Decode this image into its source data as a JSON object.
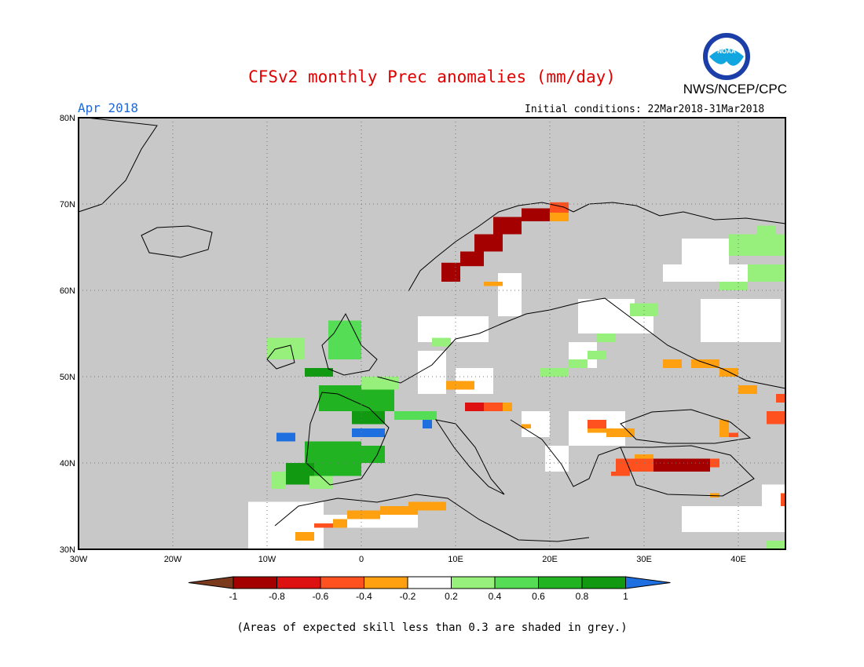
{
  "header": {
    "title": "CFSv2 monthly Prec anomalies (mm/day)",
    "org": "NWS/NCEP/CPC",
    "logo_text": "NOAA",
    "period": "Apr 2018",
    "initial_conditions": "Initial conditions: 22Mar2018-31Mar2018"
  },
  "map": {
    "region": "Europe",
    "lat_ticks": [
      "80N",
      "70N",
      "60N",
      "50N",
      "40N",
      "30N"
    ],
    "lon_ticks": [
      "30W",
      "20W",
      "10W",
      "0",
      "10E",
      "20E",
      "30E",
      "40E"
    ],
    "lon_range": [
      -30,
      45
    ],
    "lat_range": [
      30,
      80
    ],
    "grid": true,
    "skill_mask_color": "#c8c8c8",
    "land_color": "#ffffff"
  },
  "colorbar": {
    "ticks": [
      "-1",
      "-0.8",
      "-0.6",
      "-0.4",
      "-0.2",
      "0.2",
      "0.4",
      "0.6",
      "0.8",
      "1"
    ],
    "colors": [
      "#7b3a1c",
      "#a50000",
      "#dd1111",
      "#ff5020",
      "#ffa010",
      "#ffffff",
      "#97f07c",
      "#55dd55",
      "#22b322",
      "#129912",
      "#1e6fe0"
    ]
  },
  "footnote": "(Areas of expected skill less than 0.3 are shaded in grey.)",
  "anomaly_cells": [
    {
      "lon": 8.5,
      "lat": 63.2,
      "lon2": 10.5,
      "lat2": 61.0,
      "v": -0.9
    },
    {
      "lon": 10.5,
      "lat": 64.5,
      "lon2": 13.0,
      "lat2": 62.8,
      "v": -0.9
    },
    {
      "lon": 12.0,
      "lat": 66.5,
      "lon2": 15.0,
      "lat2": 64.5,
      "v": -0.9
    },
    {
      "lon": 14.0,
      "lat": 68.5,
      "lon2": 17.0,
      "lat2": 66.5,
      "v": -0.9
    },
    {
      "lon": 17.0,
      "lat": 69.5,
      "lon2": 20.0,
      "lat2": 68.0,
      "v": -0.9
    },
    {
      "lon": 20.0,
      "lat": 70.2,
      "lon2": 22.0,
      "lat2": 69.0,
      "v": -0.5
    },
    {
      "lon": 20.0,
      "lat": 69.0,
      "lon2": 22.0,
      "lat2": 68.0,
      "v": -0.3
    },
    {
      "lon": 13.0,
      "lat": 61.0,
      "lon2": 15.0,
      "lat2": 60.5,
      "v": -0.3
    },
    {
      "lon": -10.0,
      "lat": 54.5,
      "lon2": -6.0,
      "lat2": 52.0,
      "v": 0.3
    },
    {
      "lon": -3.5,
      "lat": 56.5,
      "lon2": 0.0,
      "lat2": 52.0,
      "v": 0.5
    },
    {
      "lon": -6.0,
      "lat": 51.0,
      "lon2": -3.0,
      "lat2": 50.0,
      "v": 0.9
    },
    {
      "lon": -4.5,
      "lat": 49.0,
      "lon2": 3.5,
      "lat2": 46.0,
      "v": 0.7
    },
    {
      "lon": 0.0,
      "lat": 50.0,
      "lon2": 4.0,
      "lat2": 48.5,
      "v": 0.3
    },
    {
      "lon": -1.0,
      "lat": 46.0,
      "lon2": 2.5,
      "lat2": 44.5,
      "v": 0.9
    },
    {
      "lon": 3.5,
      "lat": 46.0,
      "lon2": 8.0,
      "lat2": 45.0,
      "v": 0.5
    },
    {
      "lon": -9.0,
      "lat": 43.5,
      "lon2": -7.0,
      "lat2": 42.5,
      "v": 1.1
    },
    {
      "lon": -1.0,
      "lat": 44.0,
      "lon2": 2.5,
      "lat2": 43.0,
      "v": 1.1
    },
    {
      "lon": -6.0,
      "lat": 42.5,
      "lon2": 0.0,
      "lat2": 38.5,
      "v": 0.7
    },
    {
      "lon": 0.0,
      "lat": 42.0,
      "lon2": 2.5,
      "lat2": 40.0,
      "v": 0.7
    },
    {
      "lon": -8.0,
      "lat": 40.0,
      "lon2": -5.0,
      "lat2": 37.5,
      "v": 0.9
    },
    {
      "lon": -9.5,
      "lat": 39.0,
      "lon2": -8.0,
      "lat2": 37.0,
      "v": 0.3
    },
    {
      "lon": -5.5,
      "lat": 38.5,
      "lon2": -3.0,
      "lat2": 37.0,
      "v": 0.3
    },
    {
      "lon": 6.5,
      "lat": 45.0,
      "lon2": 7.5,
      "lat2": 44.0,
      "v": 1.1
    },
    {
      "lon": 7.5,
      "lat": 54.5,
      "lon2": 9.5,
      "lat2": 53.5,
      "v": 0.3
    },
    {
      "lon": 9.0,
      "lat": 49.5,
      "lon2": 12.0,
      "lat2": 48.5,
      "v": -0.3
    },
    {
      "lon": 11.0,
      "lat": 47.0,
      "lon2": 13.0,
      "lat2": 46.0,
      "v": -0.7
    },
    {
      "lon": 13.0,
      "lat": 47.0,
      "lon2": 15.0,
      "lat2": 46.0,
      "v": -0.5
    },
    {
      "lon": 15.0,
      "lat": 47.0,
      "lon2": 16.0,
      "lat2": 46.0,
      "v": -0.3
    },
    {
      "lon": 17.0,
      "lat": 44.5,
      "lon2": 18.0,
      "lat2": 44.0,
      "v": -0.3
    },
    {
      "lon": 19.0,
      "lat": 51.0,
      "lon2": 22.0,
      "lat2": 50.0,
      "v": 0.3
    },
    {
      "lon": 22.0,
      "lat": 52.0,
      "lon2": 24.0,
      "lat2": 51.0,
      "v": 0.3
    },
    {
      "lon": 24.0,
      "lat": 53.0,
      "lon2": 26.0,
      "lat2": 52.0,
      "v": 0.3
    },
    {
      "lon": 25.0,
      "lat": 55.0,
      "lon2": 27.0,
      "lat2": 54.0,
      "v": 0.3
    },
    {
      "lon": 28.5,
      "lat": 58.5,
      "lon2": 31.5,
      "lat2": 57.0,
      "v": 0.3
    },
    {
      "lon": 32.0,
      "lat": 52.0,
      "lon2": 34.0,
      "lat2": 51.0,
      "v": -0.3
    },
    {
      "lon": 35.0,
      "lat": 52.0,
      "lon2": 38.0,
      "lat2": 51.0,
      "v": -0.3
    },
    {
      "lon": 38.0,
      "lat": 51.0,
      "lon2": 40.0,
      "lat2": 50.0,
      "v": -0.3
    },
    {
      "lon": 40.0,
      "lat": 49.0,
      "lon2": 42.0,
      "lat2": 48.0,
      "v": -0.3
    },
    {
      "lon": 43.0,
      "lat": 46.0,
      "lon2": 45.0,
      "lat2": 44.5,
      "v": -0.5
    },
    {
      "lon": 24.0,
      "lat": 45.0,
      "lon2": 26.0,
      "lat2": 44.0,
      "v": -0.5
    },
    {
      "lon": 24.0,
      "lat": 44.0,
      "lon2": 29.0,
      "lat2": 43.5,
      "v": -0.3
    },
    {
      "lon": 26.0,
      "lat": 43.5,
      "lon2": 29.0,
      "lat2": 43.0,
      "v": -0.3
    },
    {
      "lon": 38.0,
      "lat": 45.0,
      "lon2": 39.0,
      "lat2": 43.0,
      "v": -0.3
    },
    {
      "lon": 39.0,
      "lat": 43.5,
      "lon2": 40.0,
      "lat2": 43.0,
      "v": -0.5
    },
    {
      "lon": 31.0,
      "lat": 40.5,
      "lon2": 37.0,
      "lat2": 39.0,
      "v": -0.9
    },
    {
      "lon": 37.0,
      "lat": 40.5,
      "lon2": 38.0,
      "lat2": 39.5,
      "v": -0.5
    },
    {
      "lon": 27.0,
      "lat": 40.5,
      "lon2": 31.0,
      "lat2": 39.0,
      "v": -0.5
    },
    {
      "lon": 26.5,
      "lat": 39.0,
      "lon2": 28.5,
      "lat2": 38.5,
      "v": -0.5
    },
    {
      "lon": 29.0,
      "lat": 41.0,
      "lon2": 31.0,
      "lat2": 40.5,
      "v": -0.3
    },
    {
      "lon": -1.5,
      "lat": 34.5,
      "lon2": 2.0,
      "lat2": 33.5,
      "v": -0.3
    },
    {
      "lon": 2.0,
      "lat": 35.0,
      "lon2": 6.0,
      "lat2": 34.0,
      "v": -0.3
    },
    {
      "lon": 5.0,
      "lat": 35.5,
      "lon2": 9.0,
      "lat2": 34.5,
      "v": -0.3
    },
    {
      "lon": -3.0,
      "lat": 33.5,
      "lon2": -1.5,
      "lat2": 32.5,
      "v": -0.3
    },
    {
      "lon": -5.0,
      "lat": 33.0,
      "lon2": -3.0,
      "lat2": 32.5,
      "v": -0.5
    },
    {
      "lon": -7.0,
      "lat": 32.0,
      "lon2": -5.0,
      "lat2": 31.0,
      "v": -0.3
    },
    {
      "lon": 37.0,
      "lat": 36.5,
      "lon2": 38.0,
      "lat2": 36.0,
      "v": -0.3
    },
    {
      "lon": 44.0,
      "lat": 48.0,
      "lon2": 45.0,
      "lat2": 47.0,
      "v": -0.5
    },
    {
      "lon": 44.5,
      "lat": 36.5,
      "lon2": 45.0,
      "lat2": 35.0,
      "v": -0.5
    },
    {
      "lon": 39.0,
      "lat": 66.5,
      "lon2": 45.0,
      "lat2": 64.0,
      "v": 0.3
    },
    {
      "lon": 41.0,
      "lat": 63.0,
      "lon2": 45.0,
      "lat2": 61.0,
      "v": 0.3
    },
    {
      "lon": 38.0,
      "lat": 61.0,
      "lon2": 41.0,
      "lat2": 60.0,
      "v": 0.3
    },
    {
      "lon": 42.0,
      "lat": 67.5,
      "lon2": 44.0,
      "lat2": 66.5,
      "v": 0.3
    },
    {
      "lon": 43.0,
      "lat": 31.0,
      "lon2": 45.0,
      "lat2": 30.0,
      "v": 0.3
    }
  ],
  "skill_white_areas": [
    {
      "lon": -12.0,
      "lat": 35.5,
      "lon2": -4.0,
      "lat2": 30.0
    },
    {
      "lon": -4.0,
      "lat": 34.0,
      "lon2": 6.0,
      "lat2": 32.5
    },
    {
      "lon": 6.0,
      "lat": 57.0,
      "lon2": 13.5,
      "lat2": 54.0
    },
    {
      "lon": 14.5,
      "lat": 62.0,
      "lon2": 17.0,
      "lat2": 57.0
    },
    {
      "lon": 6.0,
      "lat": 53.0,
      "lon2": 9.0,
      "lat2": 48.0
    },
    {
      "lon": 10.0,
      "lat": 51.0,
      "lon2": 14.0,
      "lat2": 48.0
    },
    {
      "lon": 17.0,
      "lat": 46.0,
      "lon2": 20.0,
      "lat2": 43.0
    },
    {
      "lon": 22.0,
      "lat": 46.0,
      "lon2": 28.0,
      "lat2": 42.0
    },
    {
      "lon": 19.5,
      "lat": 42.0,
      "lon2": 22.0,
      "lat2": 39.0
    },
    {
      "lon": 23.0,
      "lat": 59.0,
      "lon2": 29.0,
      "lat2": 55.0
    },
    {
      "lon": 29.0,
      "lat": 57.0,
      "lon2": 31.0,
      "lat2": 55.0
    },
    {
      "lon": 32.0,
      "lat": 63.0,
      "lon2": 41.0,
      "lat2": 61.0
    },
    {
      "lon": 34.0,
      "lat": 66.0,
      "lon2": 39.0,
      "lat2": 63.0
    },
    {
      "lon": 36.0,
      "lat": 59.0,
      "lon2": 44.5,
      "lat2": 54.0
    },
    {
      "lon": 34.0,
      "lat": 35.0,
      "lon2": 45.0,
      "lat2": 32.0
    },
    {
      "lon": 42.5,
      "lat": 37.5,
      "lon2": 45.0,
      "lat2": 35.0
    },
    {
      "lon": 22.0,
      "lat": 54.0,
      "lon2": 25.0,
      "lat2": 51.0
    }
  ]
}
